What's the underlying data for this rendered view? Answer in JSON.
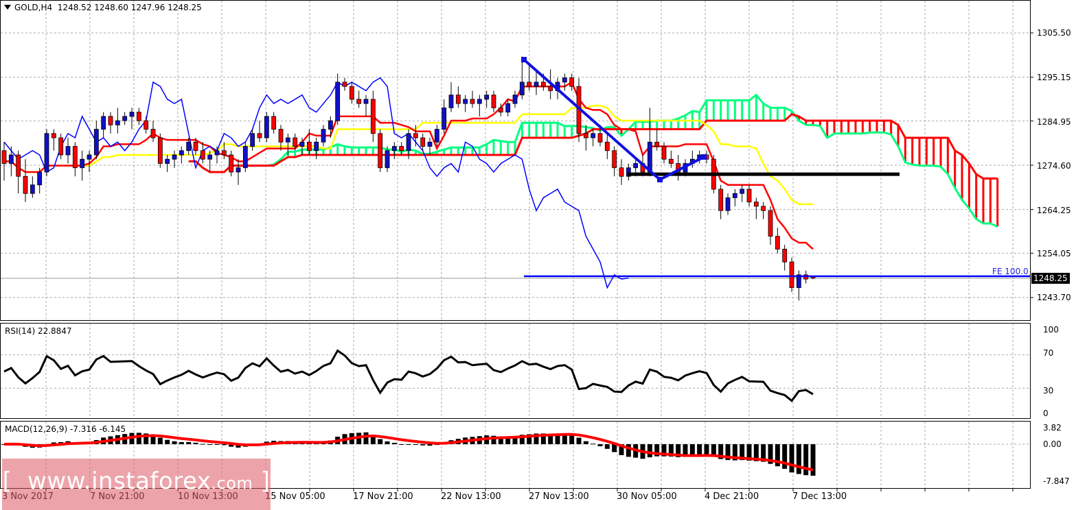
{
  "header": {
    "symbol": "GOLD,H4",
    "open": "1248.52",
    "high": "1248.60",
    "low": "1247.96",
    "close": "1248.25"
  },
  "price_axis": {
    "ticks": [
      "1305.50",
      "1295.15",
      "1284.95",
      "1274.60",
      "1264.25",
      "1254.05",
      "1243.70"
    ],
    "current_price": "1248.25"
  },
  "fe_label": "FE 100.0",
  "rsi": {
    "label": "RSI(14) 22.8847",
    "ticks": [
      "100",
      "70",
      "30",
      "0"
    ]
  },
  "macd": {
    "label": "MACD(12,26,9) -7.316 -6.145",
    "ticks": [
      "3.82",
      "0.00",
      "-7.847"
    ]
  },
  "time_axis": {
    "labels": [
      "3 Nov 2017",
      "7 Nov 21:00",
      "10 Nov 13:00",
      "15 Nov 05:00",
      "17 Nov 21:00",
      "22 Nov 13:00",
      "27 Nov 13:00",
      "30 Nov 05:00",
      "4 Dec 21:00",
      "7 Dec 13:00"
    ]
  },
  "watermark": {
    "open": "[",
    "text": "www.instaforex",
    "suffix": ".com",
    "close": "]"
  },
  "colors": {
    "bull_candle": "#1010c8",
    "bear_candle": "#ff0000",
    "tenkan": "#ff0000",
    "kijun": "#ffff00",
    "chikou": "#0000ff",
    "senkou_a": "#00ff7f",
    "senkou_b": "#ff0000",
    "rsi_line": "#000000",
    "macd_hist": "#000000",
    "macd_signal": "#ff0000",
    "fe_line": "#0000ff",
    "support_line": "#000000"
  },
  "chart_data": {
    "type": "candlestick",
    "title": "GOLD,H4",
    "ylim": [
      1240,
      1310
    ],
    "price_ticks": [
      1305.5,
      1295.15,
      1284.95,
      1274.6,
      1264.25,
      1254.05,
      1243.7
    ],
    "ohlc_last": {
      "open": 1248.52,
      "high": 1248.6,
      "low": 1247.96,
      "close": 1248.25
    },
    "x_labels": [
      "3 Nov 2017",
      "7 Nov 21:00",
      "10 Nov 13:00",
      "15 Nov 05:00",
      "17 Nov 21:00",
      "22 Nov 13:00",
      "27 Nov 13:00",
      "30 Nov 05:00",
      "4 Dec 21:00",
      "7 Dec 13:00"
    ],
    "candles": [
      [
        1278,
        1280,
        1271,
        1275
      ],
      [
        1275,
        1279,
        1272,
        1277
      ],
      [
        1277,
        1278,
        1268,
        1272
      ],
      [
        1272,
        1276,
        1266,
        1268
      ],
      [
        1268,
        1272,
        1267,
        1270
      ],
      [
        1270,
        1274,
        1268,
        1273
      ],
      [
        1273,
        1283,
        1272,
        1282
      ],
      [
        1282,
        1283,
        1278,
        1281
      ],
      [
        1281,
        1282,
        1276,
        1277
      ],
      [
        1277,
        1281,
        1275,
        1279
      ],
      [
        1279,
        1280,
        1272,
        1274
      ],
      [
        1274,
        1278,
        1271,
        1276
      ],
      [
        1276,
        1278,
        1273,
        1277
      ],
      [
        1277,
        1285,
        1276,
        1283
      ],
      [
        1283,
        1287,
        1281,
        1286
      ],
      [
        1286,
        1287,
        1282,
        1284
      ],
      [
        1284,
        1288,
        1282,
        1285
      ],
      [
        1285,
        1287,
        1284,
        1286
      ],
      [
        1286,
        1288,
        1283,
        1287
      ],
      [
        1287,
        1288,
        1284,
        1285
      ],
      [
        1285,
        1286,
        1282,
        1283
      ],
      [
        1283,
        1285,
        1280,
        1281
      ],
      [
        1281,
        1282,
        1274,
        1275
      ],
      [
        1275,
        1277,
        1273,
        1276
      ],
      [
        1276,
        1278,
        1274,
        1277
      ],
      [
        1277,
        1279,
        1275,
        1278
      ],
      [
        1278,
        1281,
        1277,
        1280
      ],
      [
        1280,
        1281,
        1277,
        1278
      ],
      [
        1278,
        1280,
        1275,
        1276
      ],
      [
        1276,
        1278,
        1273,
        1277
      ],
      [
        1277,
        1279,
        1275,
        1278
      ],
      [
        1278,
        1280,
        1276,
        1277
      ],
      [
        1277,
        1278,
        1272,
        1273
      ],
      [
        1273,
        1276,
        1270,
        1274
      ],
      [
        1274,
        1280,
        1273,
        1279
      ],
      [
        1279,
        1283,
        1278,
        1282
      ],
      [
        1282,
        1285,
        1280,
        1281
      ],
      [
        1281,
        1287,
        1280,
        1286
      ],
      [
        1286,
        1287,
        1282,
        1283
      ],
      [
        1283,
        1284,
        1278,
        1280
      ],
      [
        1280,
        1282,
        1277,
        1281
      ],
      [
        1281,
        1282,
        1278,
        1279
      ],
      [
        1279,
        1281,
        1277,
        1280
      ],
      [
        1280,
        1283,
        1277,
        1278
      ],
      [
        1278,
        1281,
        1276,
        1280
      ],
      [
        1280,
        1284,
        1279,
        1283
      ],
      [
        1283,
        1286,
        1281,
        1285
      ],
      [
        1285,
        1296,
        1284,
        1294
      ],
      [
        1294,
        1295,
        1292,
        1293
      ],
      [
        1293,
        1294,
        1289,
        1290
      ],
      [
        1290,
        1292,
        1288,
        1289
      ],
      [
        1289,
        1291,
        1286,
        1290
      ],
      [
        1290,
        1292,
        1280,
        1282
      ],
      [
        1282,
        1283,
        1273,
        1274
      ],
      [
        1274,
        1279,
        1273,
        1278
      ],
      [
        1278,
        1280,
        1276,
        1279
      ],
      [
        1279,
        1280,
        1277,
        1278
      ],
      [
        1278,
        1283,
        1276,
        1282
      ],
      [
        1282,
        1284,
        1279,
        1281
      ],
      [
        1281,
        1282,
        1278,
        1279
      ],
      [
        1279,
        1281,
        1277,
        1280
      ],
      [
        1280,
        1284,
        1279,
        1283
      ],
      [
        1283,
        1290,
        1282,
        1288
      ],
      [
        1288,
        1294,
        1287,
        1291
      ],
      [
        1291,
        1293,
        1288,
        1289
      ],
      [
        1289,
        1291,
        1287,
        1290
      ],
      [
        1290,
        1292,
        1288,
        1289
      ],
      [
        1289,
        1291,
        1286,
        1290
      ],
      [
        1290,
        1292,
        1288,
        1291
      ],
      [
        1291,
        1292,
        1287,
        1288
      ],
      [
        1288,
        1289,
        1286,
        1287
      ],
      [
        1287,
        1290,
        1286,
        1289
      ],
      [
        1289,
        1292,
        1288,
        1291
      ],
      [
        1291,
        1300,
        1290,
        1294
      ],
      [
        1294,
        1298,
        1292,
        1293
      ],
      [
        1293,
        1297,
        1291,
        1294
      ],
      [
        1294,
        1296,
        1292,
        1293
      ],
      [
        1293,
        1297,
        1290,
        1292
      ],
      [
        1292,
        1295,
        1290,
        1294
      ],
      [
        1294,
        1296,
        1292,
        1295
      ],
      [
        1295,
        1296,
        1292,
        1293
      ],
      [
        1293,
        1295,
        1280,
        1282
      ],
      [
        1282,
        1284,
        1278,
        1281
      ],
      [
        1281,
        1283,
        1279,
        1282
      ],
      [
        1282,
        1284,
        1279,
        1280
      ],
      [
        1280,
        1282,
        1276,
        1278
      ],
      [
        1278,
        1279,
        1272,
        1274
      ],
      [
        1274,
        1276,
        1270,
        1272
      ],
      [
        1272,
        1275,
        1271,
        1274
      ],
      [
        1274,
        1276,
        1272,
        1275
      ],
      [
        1275,
        1277,
        1272,
        1273
      ],
      [
        1273,
        1288,
        1272,
        1280
      ],
      [
        1280,
        1283,
        1278,
        1279
      ],
      [
        1279,
        1280,
        1275,
        1276
      ],
      [
        1276,
        1278,
        1274,
        1275
      ],
      [
        1275,
        1277,
        1271,
        1273
      ],
      [
        1273,
        1276,
        1272,
        1275
      ],
      [
        1275,
        1278,
        1274,
        1276
      ],
      [
        1276,
        1278,
        1275,
        1277
      ],
      [
        1277,
        1278,
        1275,
        1276
      ],
      [
        1276,
        1277,
        1268,
        1269
      ],
      [
        1269,
        1270,
        1262,
        1264
      ],
      [
        1264,
        1268,
        1263,
        1267
      ],
      [
        1267,
        1269,
        1265,
        1268
      ],
      [
        1268,
        1270,
        1266,
        1269
      ],
      [
        1269,
        1270,
        1265,
        1266
      ],
      [
        1266,
        1267,
        1262,
        1265
      ],
      [
        1265,
        1266,
        1262,
        1264
      ],
      [
        1264,
        1265,
        1256,
        1258
      ],
      [
        1258,
        1260,
        1254,
        1255
      ],
      [
        1255,
        1256,
        1250,
        1252
      ],
      [
        1252,
        1253,
        1245,
        1246
      ],
      [
        1246,
        1250,
        1243,
        1249
      ],
      [
        1249,
        1250,
        1247,
        1248
      ],
      [
        1248.52,
        1248.6,
        1247.96,
        1248.25
      ]
    ],
    "fe_level": 1248.7,
    "support_level": 1272.5,
    "rsi": {
      "ylim": [
        0,
        100
      ],
      "levels": [
        70,
        30
      ],
      "last": 22.8847
    },
    "macd": {
      "ylim": [
        -7.847,
        3.82
      ],
      "main_last": -7.316,
      "signal_last": -6.145
    },
    "legend": [
      "Ichimoku Tenkan-sen (red)",
      "Kijun-sen (yellow)",
      "Chikou Span (blue)",
      "Senkou Span A (green)",
      "Senkou Span B (red)"
    ]
  }
}
